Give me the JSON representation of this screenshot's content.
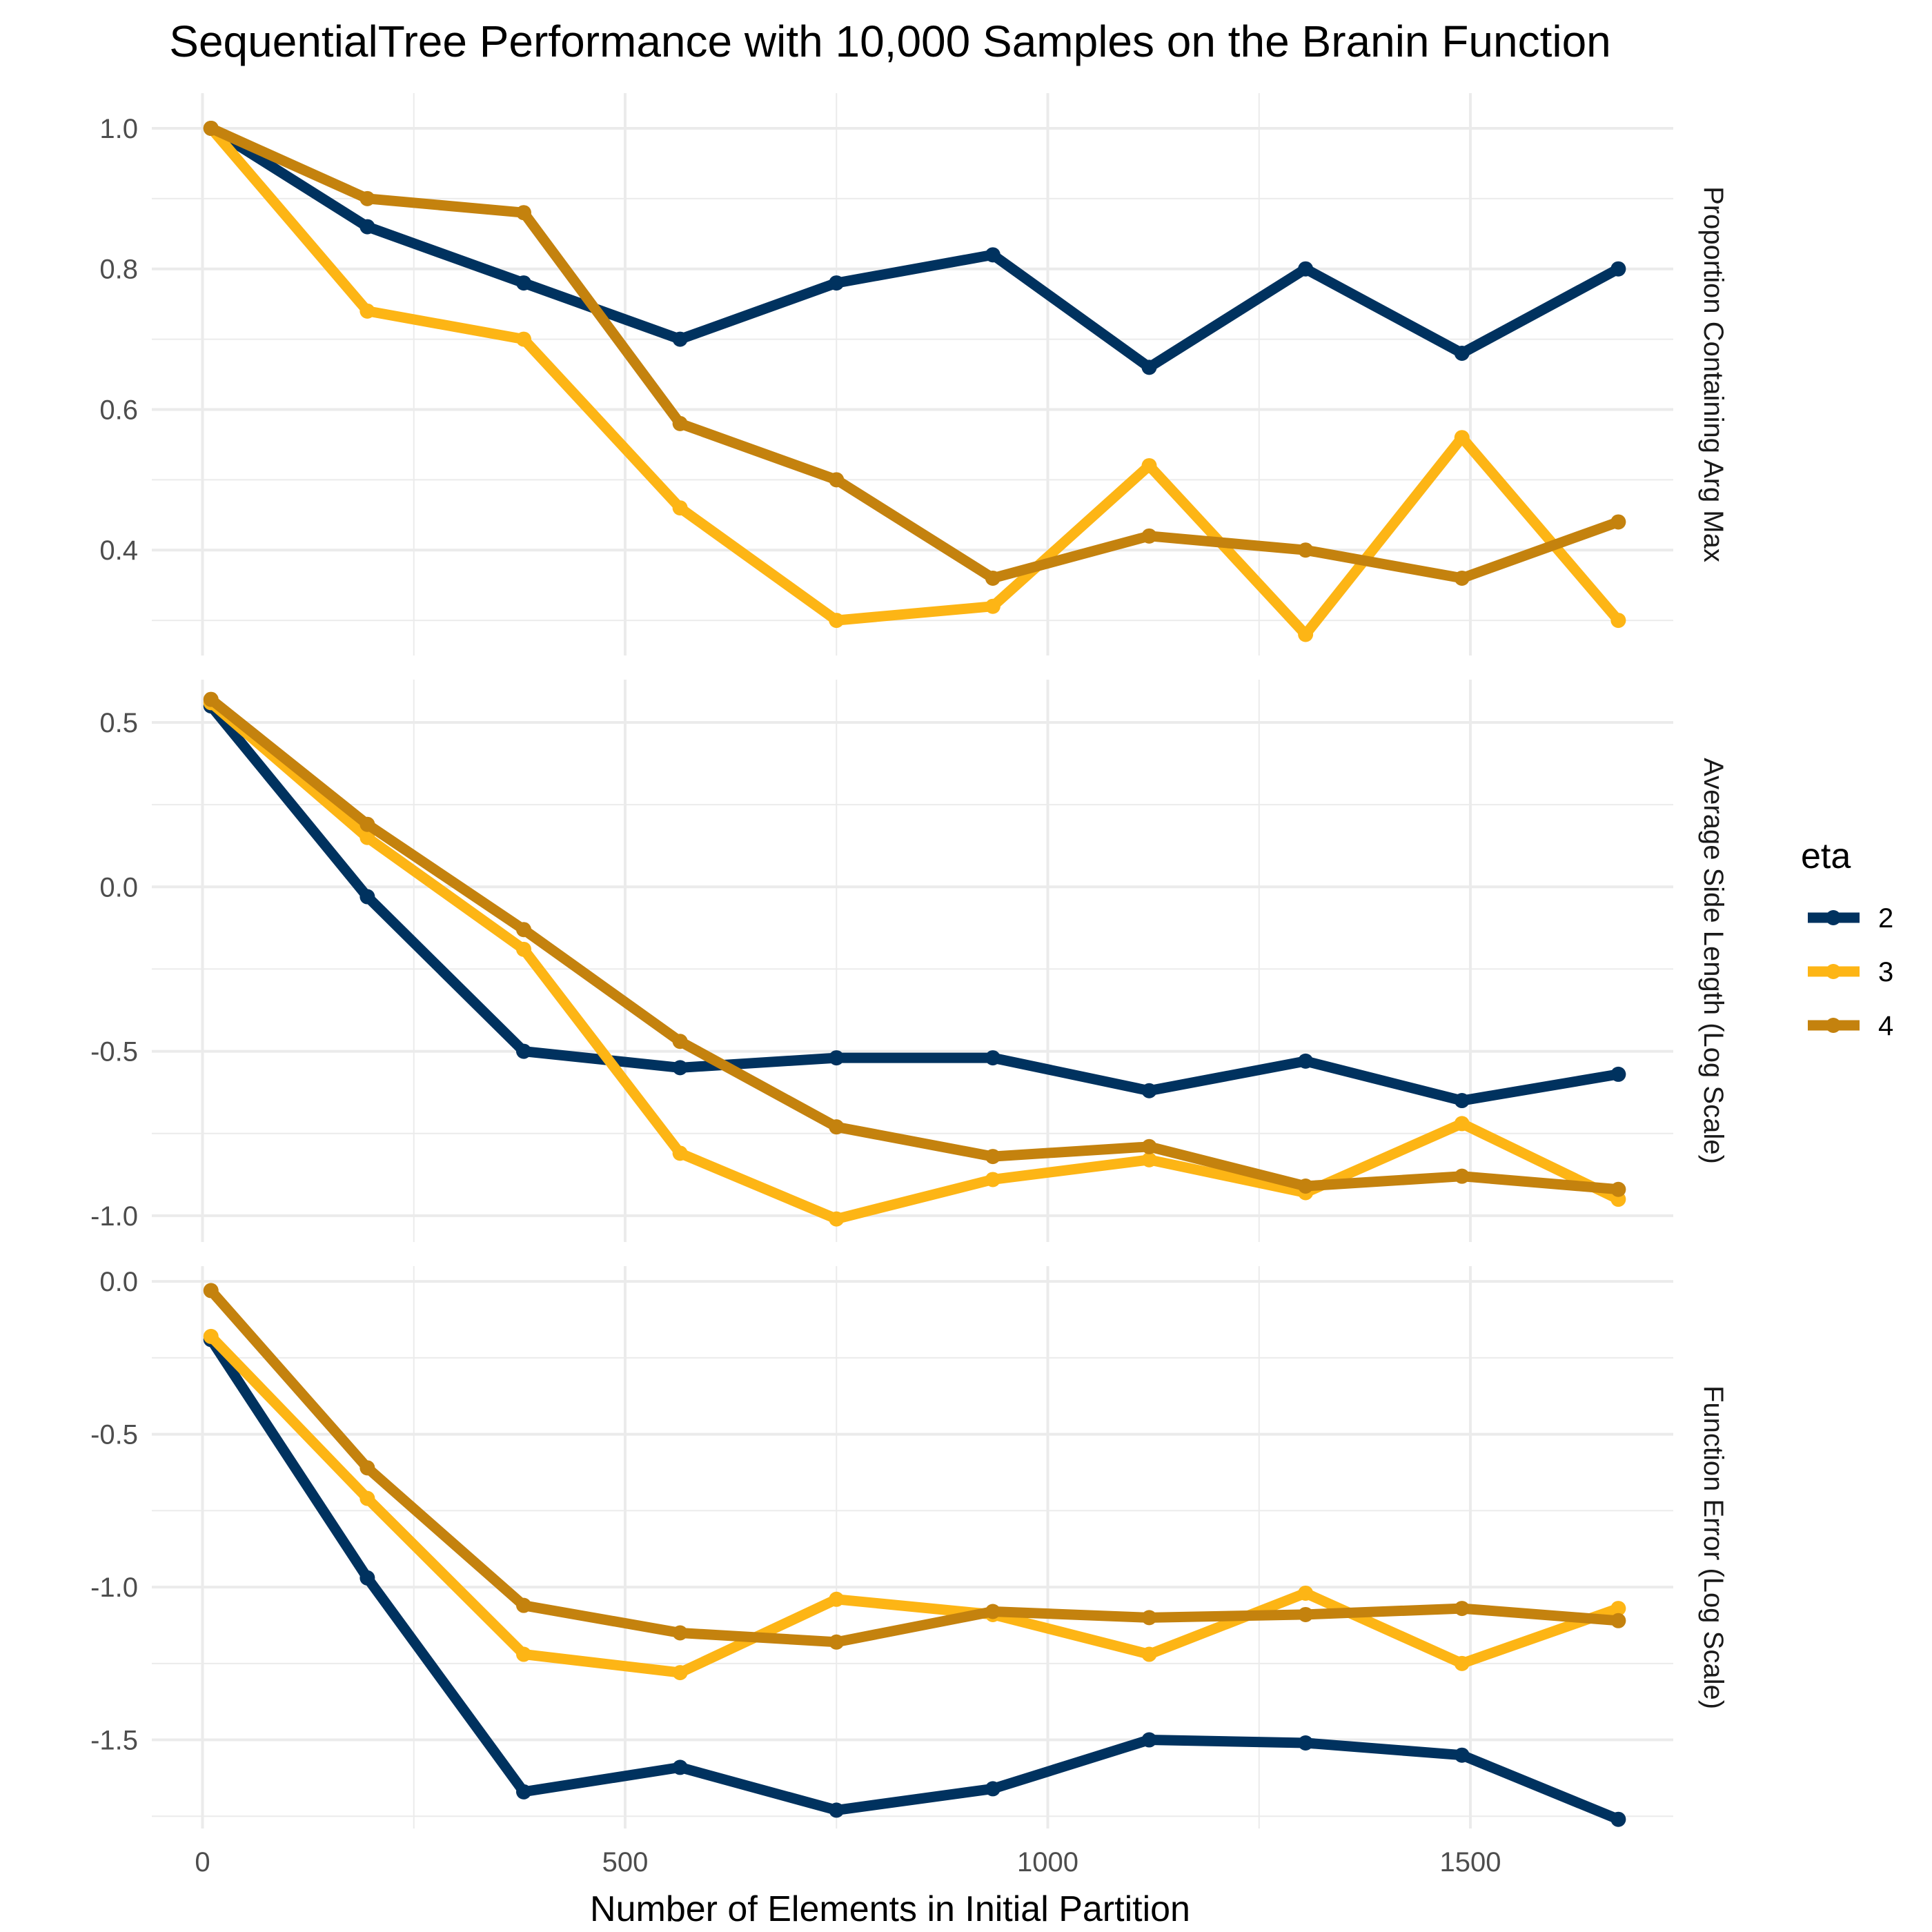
{
  "chart_data": {
    "type": "line",
    "title": "SequentialTree Performance with 10,000 Samples on the Branin Function",
    "xlabel": "Number of Elements in Initial Partition",
    "x": [
      10,
      195,
      380,
      565,
      750,
      935,
      1120,
      1305,
      1490,
      1675
    ],
    "xlim": [
      -60,
      1740
    ],
    "xticks": [
      0,
      500,
      1000,
      1500
    ],
    "xtick_labels": [
      "0",
      "500",
      "1000",
      "1500"
    ],
    "grid": true,
    "legend": {
      "title": "eta",
      "placement": "right",
      "entries": [
        "2",
        "3",
        "4"
      ]
    },
    "series_colors": {
      "2": "#00325f",
      "3": "#fdb515",
      "4": "#c4820e"
    },
    "panels": [
      {
        "strip_label": "Proportion Containing Arg Max",
        "ylim": [
          0.25,
          1.05
        ],
        "yticks": [
          0.4,
          0.6,
          0.8,
          1.0
        ],
        "ytick_labels": [
          "0.4",
          "0.6",
          "0.8",
          "1.0"
        ],
        "series": [
          {
            "name": "2",
            "values": [
              1.0,
              0.86,
              0.78,
              0.7,
              0.78,
              0.82,
              0.66,
              0.8,
              0.68,
              0.8
            ]
          },
          {
            "name": "3",
            "values": [
              1.0,
              0.74,
              0.7,
              0.46,
              0.3,
              0.32,
              0.52,
              0.28,
              0.56,
              0.3
            ]
          },
          {
            "name": "4",
            "values": [
              1.0,
              0.9,
              0.88,
              0.58,
              0.5,
              0.36,
              0.42,
              0.4,
              0.36,
              0.44
            ]
          }
        ]
      },
      {
        "strip_label": "Average Side Length (Log Scale)",
        "ylim": [
          -1.08,
          0.63
        ],
        "yticks": [
          -1.0,
          -0.5,
          0.0,
          0.5
        ],
        "ytick_labels": [
          "-1.0",
          "-0.5",
          "0.0",
          "0.5"
        ],
        "series": [
          {
            "name": "2",
            "values": [
              0.55,
              -0.03,
              -0.5,
              -0.55,
              -0.52,
              -0.52,
              -0.62,
              -0.53,
              -0.65,
              -0.57
            ]
          },
          {
            "name": "3",
            "values": [
              0.56,
              0.15,
              -0.19,
              -0.81,
              -1.01,
              -0.89,
              -0.83,
              -0.93,
              -0.72,
              -0.95
            ]
          },
          {
            "name": "4",
            "values": [
              0.57,
              0.19,
              -0.13,
              -0.47,
              -0.73,
              -0.82,
              -0.79,
              -0.91,
              -0.88,
              -0.92
            ]
          }
        ]
      },
      {
        "strip_label": "Function Error (Log Scale)",
        "ylim": [
          -1.79,
          0.05
        ],
        "yticks": [
          -1.5,
          -1.0,
          -0.5,
          0.0
        ],
        "ytick_labels": [
          "-1.5",
          "-1.0",
          "-0.5",
          "0.0"
        ],
        "series": [
          {
            "name": "2",
            "values": [
              -0.19,
              -0.97,
              -1.67,
              -1.59,
              -1.73,
              -1.66,
              -1.5,
              -1.51,
              -1.55,
              -1.76
            ]
          },
          {
            "name": "3",
            "values": [
              -0.18,
              -0.71,
              -1.22,
              -1.28,
              -1.04,
              -1.09,
              -1.22,
              -1.02,
              -1.25,
              -1.07
            ]
          },
          {
            "name": "4",
            "values": [
              -0.03,
              -0.61,
              -1.06,
              -1.15,
              -1.18,
              -1.08,
              -1.1,
              -1.09,
              -1.07,
              -1.11
            ]
          }
        ]
      }
    ]
  }
}
